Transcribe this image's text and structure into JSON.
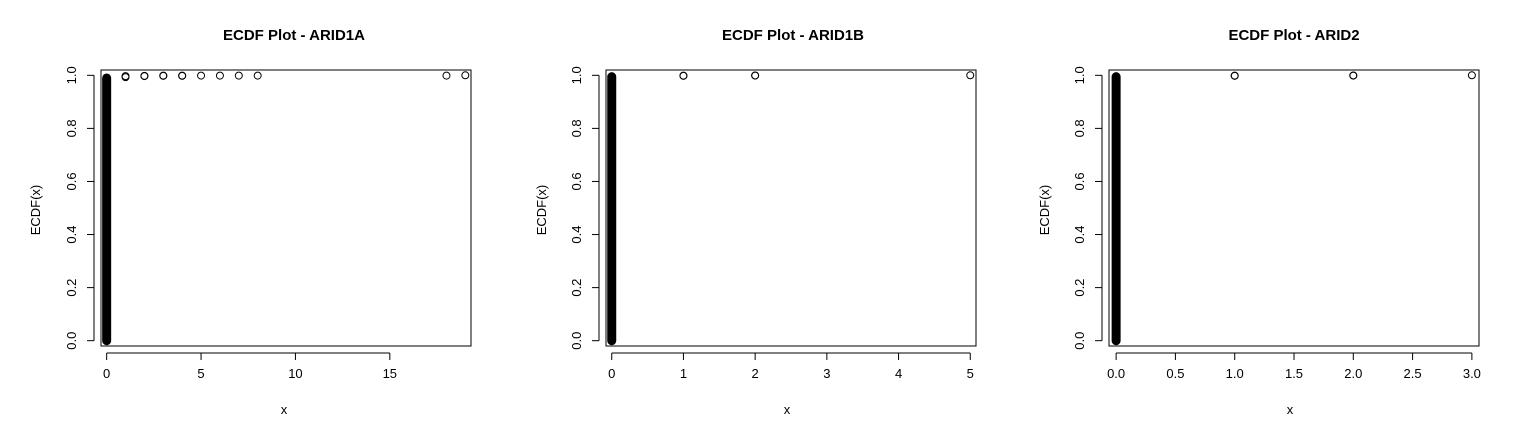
{
  "chart_data": [
    {
      "type": "scatter",
      "title": "ECDF Plot - ARID1A",
      "xlabel": "x",
      "ylabel": "ECDF(x)",
      "xlim": [
        -0.3,
        19.3
      ],
      "ylim": [
        -0.02,
        1.02
      ],
      "x_ticks": [
        0,
        5,
        10,
        15
      ],
      "x_tick_labels": [
        "0",
        "5",
        "10",
        "15"
      ],
      "y_ticks": [
        0.0,
        0.2,
        0.4,
        0.6,
        0.8,
        1.0
      ],
      "y_tick_labels": [
        "0.0",
        "0.2",
        "0.4",
        "0.6",
        "0.8",
        "1.0"
      ],
      "grid": false,
      "legend": "none",
      "series": [
        {
          "dense_band": {
            "x": 0,
            "y_from": 0.0,
            "y_to": 0.99
          },
          "points": [
            {
              "x": 1,
              "y": 0.993
            },
            {
              "x": 1,
              "y": 0.997
            },
            {
              "x": 2,
              "y": 0.997
            },
            {
              "x": 2,
              "y": 0.998
            },
            {
              "x": 3,
              "y": 0.998
            },
            {
              "x": 3,
              "y": 0.999
            },
            {
              "x": 4,
              "y": 0.998
            },
            {
              "x": 4,
              "y": 0.999
            },
            {
              "x": 5,
              "y": 0.999
            },
            {
              "x": 6,
              "y": 0.999
            },
            {
              "x": 7,
              "y": 0.999
            },
            {
              "x": 8,
              "y": 0.999
            },
            {
              "x": 18,
              "y": 0.999
            },
            {
              "x": 19,
              "y": 1.0
            }
          ]
        }
      ]
    },
    {
      "type": "scatter",
      "title": "ECDF Plot - ARID1B",
      "xlabel": "x",
      "ylabel": "ECDF(x)",
      "xlim": [
        -0.08,
        5.08
      ],
      "ylim": [
        -0.02,
        1.02
      ],
      "x_ticks": [
        0,
        1,
        2,
        3,
        4,
        5
      ],
      "x_tick_labels": [
        "0",
        "1",
        "2",
        "3",
        "4",
        "5"
      ],
      "y_ticks": [
        0.0,
        0.2,
        0.4,
        0.6,
        0.8,
        1.0
      ],
      "y_tick_labels": [
        "0.0",
        "0.2",
        "0.4",
        "0.6",
        "0.8",
        "1.0"
      ],
      "grid": false,
      "legend": "none",
      "series": [
        {
          "dense_band": {
            "x": 0,
            "y_from": 0.0,
            "y_to": 0.995
          },
          "points": [
            {
              "x": 1,
              "y": 0.998
            },
            {
              "x": 1,
              "y": 0.999
            },
            {
              "x": 2,
              "y": 0.999
            },
            {
              "x": 2,
              "y": 0.9995
            },
            {
              "x": 5,
              "y": 1.0
            }
          ]
        }
      ]
    },
    {
      "type": "scatter",
      "title": "ECDF Plot - ARID2",
      "xlabel": "x",
      "ylabel": "ECDF(x)",
      "xlim": [
        -0.06,
        3.06
      ],
      "ylim": [
        -0.02,
        1.02
      ],
      "x_ticks": [
        0.0,
        0.5,
        1.0,
        1.5,
        2.0,
        2.5,
        3.0
      ],
      "x_tick_labels": [
        "0.0",
        "0.5",
        "1.0",
        "1.5",
        "2.0",
        "2.5",
        "3.0"
      ],
      "y_ticks": [
        0.0,
        0.2,
        0.4,
        0.6,
        0.8,
        1.0
      ],
      "y_tick_labels": [
        "0.0",
        "0.2",
        "0.4",
        "0.6",
        "0.8",
        "1.0"
      ],
      "grid": false,
      "legend": "none",
      "series": [
        {
          "dense_band": {
            "x": 0,
            "y_from": 0.0,
            "y_to": 0.995
          },
          "points": [
            {
              "x": 1,
              "y": 0.998
            },
            {
              "x": 1,
              "y": 0.999
            },
            {
              "x": 2,
              "y": 0.999
            },
            {
              "x": 2,
              "y": 0.9995
            },
            {
              "x": 3,
              "y": 1.0
            }
          ]
        }
      ]
    }
  ]
}
